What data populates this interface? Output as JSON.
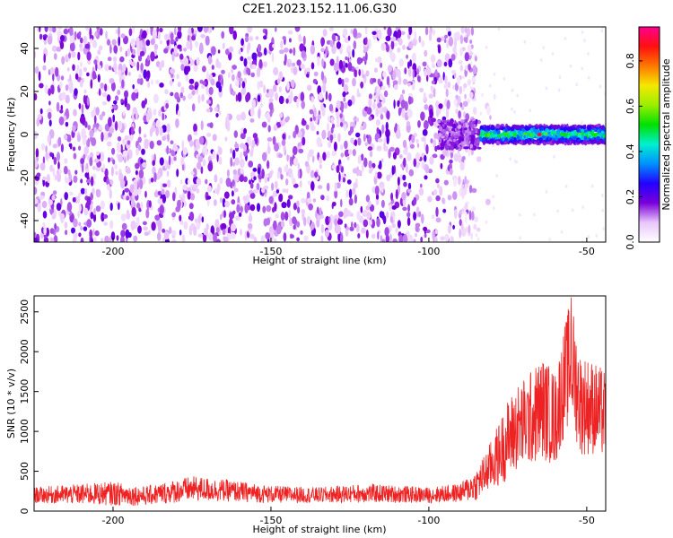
{
  "title": "C2E1.2023.152.11.06.G30",
  "chart_data": [
    {
      "type": "heatmap",
      "xlabel": "Height of straight line (km)",
      "ylabel": "Frequency (Hz)",
      "xlim": [
        -225,
        -44
      ],
      "ylim": [
        -50,
        50
      ],
      "xticks": [
        -200,
        -150,
        -100,
        -50
      ],
      "yticks": [
        -40,
        -20,
        0,
        20,
        40
      ],
      "colorbar": {
        "label": "Normalized spectral amplitude",
        "range": [
          0,
          0.95
        ],
        "ticks": [
          0.0,
          0.2,
          0.4,
          0.6,
          0.8
        ],
        "colors": [
          "#ffffff",
          "#e9c6fb",
          "#7a00d9",
          "#2200ff",
          "#0090ff",
          "#00f0d0",
          "#00e000",
          "#9aee00",
          "#f5e800",
          "#ff7800",
          "#ff1010",
          "#ff0090"
        ]
      },
      "features": {
        "noise_region_x": [
          -225,
          -85
        ],
        "signal_band_x": [
          -97,
          -44
        ],
        "signal_band_frequency": [
          -4,
          4
        ],
        "peak": {
          "x": -65,
          "y": 0,
          "value": 0.95
        }
      }
    },
    {
      "type": "line",
      "xlabel": "Height of straight line (km)",
      "ylabel": "SNR (10 * v/v)",
      "xlim": [
        -225,
        -44
      ],
      "ylim": [
        0,
        2700
      ],
      "xticks": [
        -200,
        -150,
        -100,
        -50
      ],
      "yticks": [
        0,
        500,
        1000,
        1500,
        2000,
        2500
      ],
      "series": [
        {
          "color": "#ee2222",
          "profile_x": [
            -225,
            -200,
            -190,
            -175,
            -165,
            -150,
            -135,
            -120,
            -100,
            -90,
            -85,
            -82,
            -78,
            -75,
            -72,
            -68,
            -64,
            -60,
            -57,
            -55,
            -52,
            -48,
            -44
          ],
          "profile_y": [
            200,
            220,
            190,
            280,
            260,
            210,
            200,
            225,
            200,
            230,
            330,
            480,
            700,
            900,
            1050,
            1150,
            1300,
            1150,
            1650,
            1900,
            1350,
            1300,
            1200
          ],
          "noise": [
            100,
            150,
            120,
            160,
            140,
            110,
            100,
            120,
            100,
            120,
            200,
            260,
            400,
            500,
            550,
            600,
            650,
            600,
            700,
            800,
            650,
            600,
            550
          ],
          "peak": {
            "x": -55,
            "y": 2680
          }
        }
      ]
    }
  ]
}
